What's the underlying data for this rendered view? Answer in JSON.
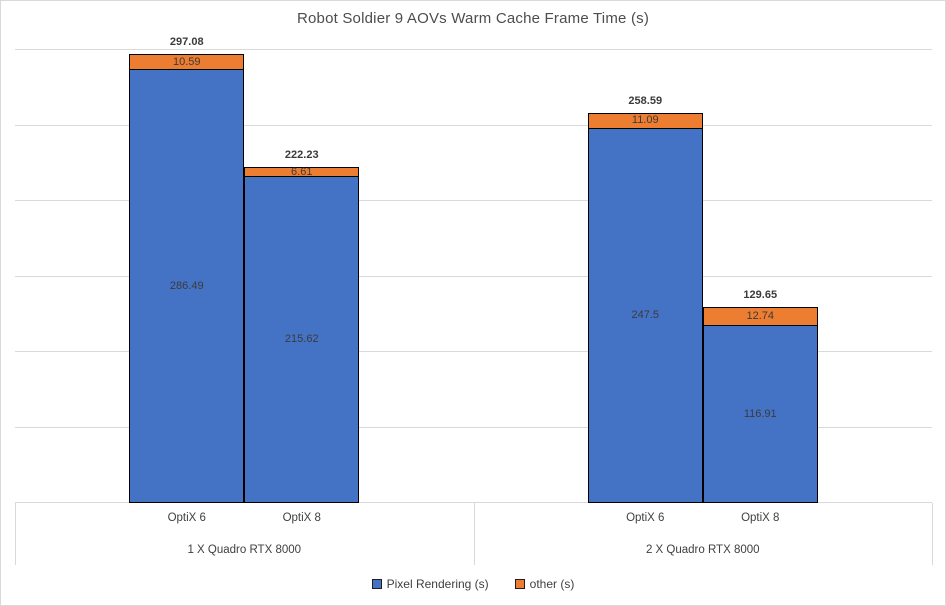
{
  "chart_data": {
    "type": "bar",
    "stacked": true,
    "title": "Robot Soldier 9 AOVs Warm Cache Frame Time (s)",
    "xlabel": "",
    "ylabel": "",
    "ylim": [
      0,
      300
    ],
    "grid_step": 50,
    "grid": true,
    "y_tick_labels_visible": false,
    "legend_position": "bottom",
    "group_labels": [
      "1 X Quadro RTX 8000",
      "2 X Quadro RTX 8000"
    ],
    "categories": [
      "OptiX 6",
      "OptiX 8",
      "OptiX 6",
      "OptiX 8"
    ],
    "series": [
      {
        "name": "Pixel Rendering (s)",
        "color": "#4472C4",
        "values": [
          286.49,
          215.62,
          247.5,
          116.91
        ],
        "data_labels": [
          "286.49",
          "215.62",
          "247.5",
          "116.91"
        ]
      },
      {
        "name": "other (s)",
        "color": "#ED7D31",
        "values": [
          10.59,
          6.61,
          11.09,
          12.74
        ],
        "data_labels": [
          "10.59",
          "6.61",
          "11.09",
          "12.74"
        ]
      }
    ],
    "totals": [
      297.08,
      222.23,
      258.59,
      129.65
    ],
    "total_labels": [
      "297.08",
      "222.23",
      "258.59",
      "129.65"
    ]
  },
  "colors": {
    "series_blue": "#4472C4",
    "series_orange": "#ED7D31",
    "bar_border": "#000000",
    "gridline": "#D9D9D9",
    "axis_text": "#404040",
    "title_text": "#4D4D4D",
    "chart_border": "#D9D9D9",
    "background": "#FFFFFF"
  }
}
